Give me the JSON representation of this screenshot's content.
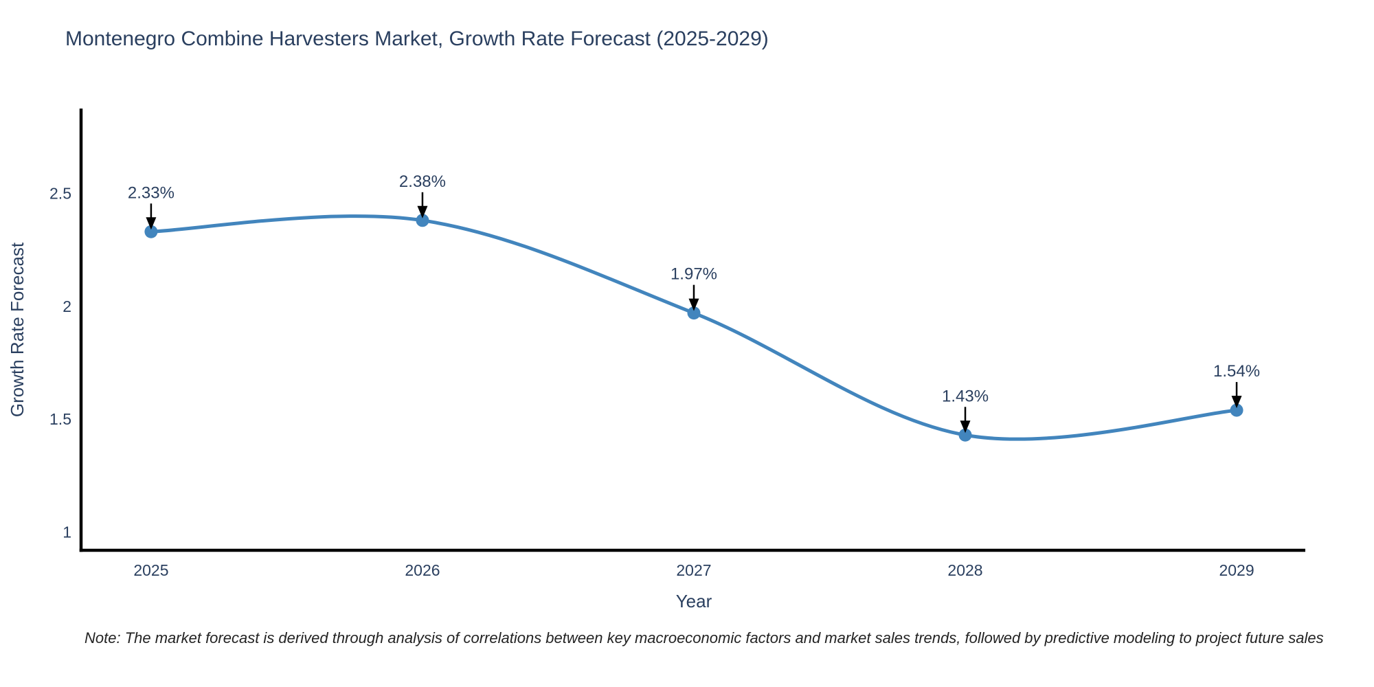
{
  "title": "Montenegro Combine Harvesters Market, Growth Rate Forecast (2025-2029)",
  "note": "Note: The market forecast is derived through analysis of correlations between key macroeconomic factors and market sales trends, followed by predictive modeling to project future sales",
  "colors": {
    "line": "#4285bd",
    "marker": "#4285bd",
    "axis": "#000000",
    "title_text": "#2a3f5f",
    "tick_text": "#2a3f5f",
    "annotation_text": "#2a3f5f",
    "arrow": "#000000",
    "background": "#ffffff"
  },
  "chart_data": {
    "type": "line",
    "line_shape": "spline",
    "title": "Montenegro Combine Harvesters Market, Growth Rate Forecast (2025-2029)",
    "xlabel": "Year",
    "ylabel": "Growth Rate Forecast",
    "x": [
      2025,
      2026,
      2027,
      2028,
      2029
    ],
    "values": [
      2.33,
      2.38,
      1.97,
      1.43,
      1.54
    ],
    "point_labels": [
      "2.33%",
      "2.38%",
      "1.97%",
      "1.43%",
      "1.54%"
    ],
    "x_ticks": [
      2025,
      2026,
      2027,
      2028,
      2029
    ],
    "y_ticks": [
      1,
      1.5,
      2,
      2.5
    ],
    "xlim": [
      2024.742,
      2029.253
    ],
    "ylim": [
      0.92,
      2.875
    ],
    "grid": false,
    "legend": "none"
  }
}
